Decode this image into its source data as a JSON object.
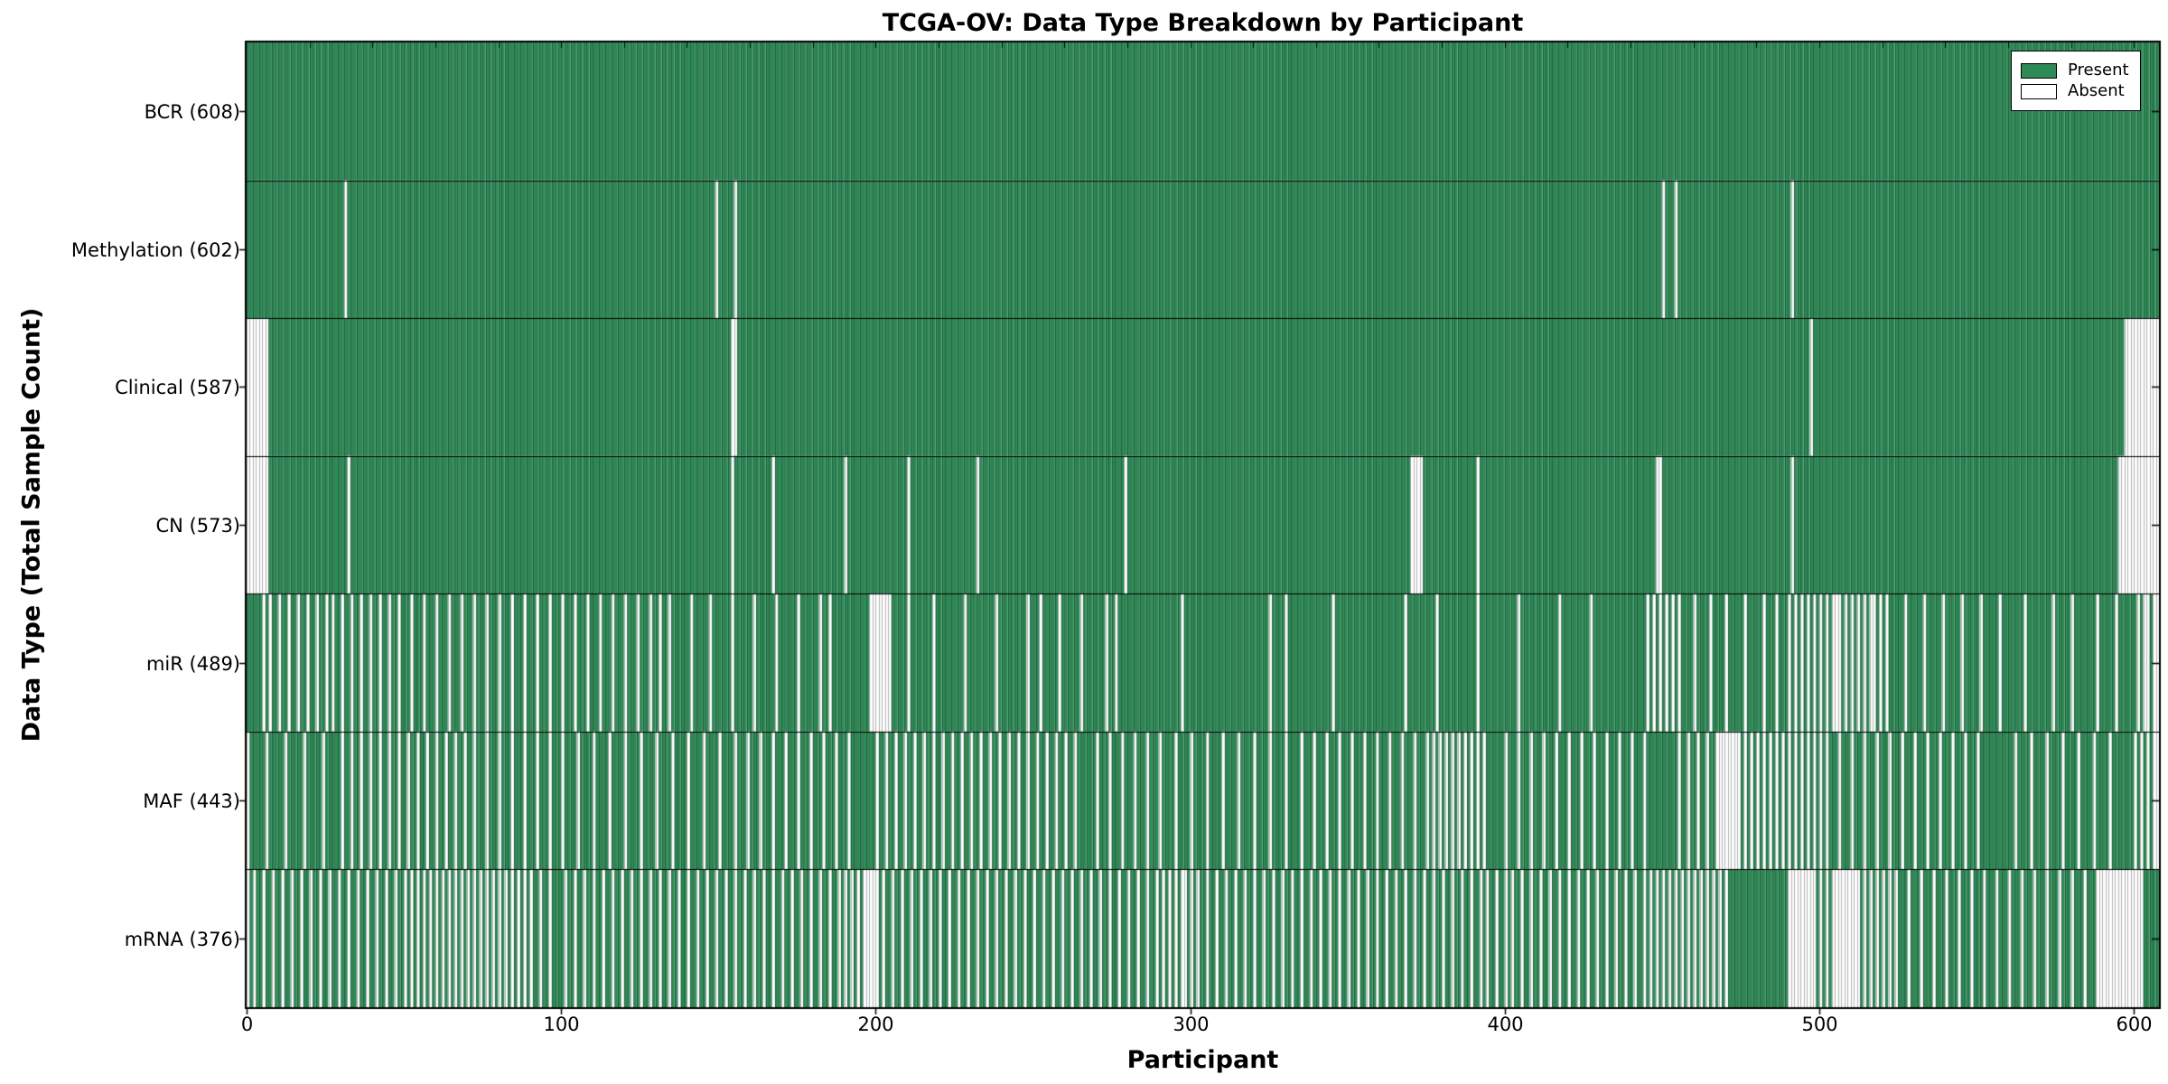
{
  "chart_data": {
    "type": "heatmap",
    "title": "TCGA-OV: Data Type Breakdown by Participant",
    "xlabel": "Participant",
    "ylabel": "Data Type (Total Sample Count)",
    "x_ticks": [
      "0",
      "100",
      "200",
      "300",
      "400",
      "500",
      "600"
    ],
    "x_tick_values": [
      0,
      100,
      200,
      300,
      400,
      500,
      600
    ],
    "xlim": [
      0,
      608
    ],
    "n_participants": 608,
    "grid": false,
    "legend_position": "upper right",
    "legend": {
      "entries": [
        {
          "label": "Present",
          "color": "#2e8b57"
        },
        {
          "label": "Absent",
          "color": "#ffffff"
        }
      ]
    },
    "colors": {
      "present": "#2e8b57",
      "absent": "#ffffff",
      "bar_edge": "rgba(0,0,0,0.30)",
      "frame": "#000000"
    },
    "rows": [
      {
        "name": "BCR",
        "count": 608,
        "tick_label": "BCR (608)",
        "absent": []
      },
      {
        "name": "Methylation",
        "count": 602,
        "tick_label": "Methylation (602)",
        "absent": [
          31,
          149,
          155,
          450,
          454,
          491
        ]
      },
      {
        "name": "Clinical",
        "count": 587,
        "tick_label": "Clinical (587)",
        "absent": [
          0,
          1,
          2,
          3,
          4,
          5,
          6,
          154,
          155,
          497,
          597,
          598,
          599,
          600,
          601,
          602,
          603,
          604,
          605,
          606,
          607
        ]
      },
      {
        "name": "CN",
        "count": 573,
        "tick_label": "CN (573)",
        "absent": [
          0,
          1,
          2,
          3,
          4,
          5,
          6,
          32,
          154,
          167,
          190,
          210,
          232,
          279,
          370,
          371,
          372,
          373,
          391,
          448,
          449,
          491,
          595,
          596,
          597,
          598,
          599,
          600,
          601,
          602,
          603,
          604,
          605,
          606,
          607
        ]
      },
      {
        "name": "miR",
        "count": 489,
        "tick_label": "miR (489)",
        "absent": [
          5,
          7,
          10,
          13,
          16,
          19,
          22,
          25,
          27,
          30,
          33,
          36,
          39,
          42,
          45,
          48,
          52,
          56,
          60,
          64,
          68,
          72,
          76,
          80,
          84,
          88,
          92,
          96,
          100,
          104,
          108,
          112,
          116,
          120,
          124,
          128,
          131,
          134,
          141,
          147,
          154,
          161,
          168,
          175,
          182,
          185,
          198,
          199,
          200,
          201,
          202,
          203,
          204,
          210,
          218,
          228,
          238,
          248,
          252,
          258,
          265,
          273,
          276,
          297,
          325,
          330,
          345,
          368,
          378,
          391,
          404,
          417,
          427,
          445,
          447,
          449,
          451,
          453,
          455,
          460,
          465,
          470,
          476,
          482,
          486,
          490,
          492,
          494,
          496,
          498,
          500,
          502,
          504,
          505,
          506,
          508,
          510,
          512,
          514,
          516,
          517,
          519,
          521,
          527,
          533,
          539,
          545,
          551,
          557,
          565,
          574,
          580,
          588,
          594,
          601,
          603,
          604,
          606,
          607
        ]
      },
      {
        "name": "MAF",
        "count": 443,
        "tick_label": "MAF (443)",
        "absent": [
          0,
          6,
          12,
          18,
          24,
          30,
          33,
          36,
          39,
          42,
          45,
          48,
          51,
          54,
          57,
          60,
          63,
          66,
          69,
          72,
          76,
          80,
          84,
          88,
          92,
          96,
          100,
          105,
          110,
          115,
          120,
          125,
          130,
          135,
          140,
          145,
          150,
          155,
          159,
          163,
          167,
          171,
          175,
          179,
          183,
          187,
          191,
          200,
          203,
          206,
          209,
          212,
          215,
          218,
          221,
          224,
          227,
          230,
          233,
          236,
          239,
          242,
          245,
          248,
          251,
          254,
          257,
          260,
          263,
          270,
          274,
          278,
          282,
          286,
          290,
          295,
          300,
          305,
          310,
          315,
          320,
          325,
          330,
          335,
          339,
          343,
          347,
          351,
          355,
          359,
          363,
          367,
          371,
          375,
          377,
          379,
          381,
          383,
          385,
          387,
          389,
          391,
          393,
          400,
          404,
          408,
          412,
          416,
          420,
          424,
          428,
          432,
          436,
          440,
          444,
          455,
          458,
          461,
          464,
          467,
          468,
          469,
          470,
          471,
          472,
          473,
          474,
          476,
          478,
          480,
          482,
          484,
          486,
          488,
          490,
          492,
          494,
          496,
          498,
          500,
          502,
          506,
          510,
          514,
          518,
          522,
          526,
          530,
          534,
          538,
          542,
          546,
          550,
          562,
          567,
          572,
          577,
          582,
          587,
          592,
          600,
          602,
          604,
          606,
          607
        ]
      },
      {
        "name": "mRNA",
        "count": 376,
        "tick_label": "mRNA (376)",
        "absent": [
          0,
          2,
          5,
          8,
          11,
          14,
          17,
          20,
          23,
          26,
          29,
          32,
          35,
          38,
          41,
          44,
          47,
          50,
          52,
          54,
          56,
          58,
          60,
          62,
          64,
          66,
          68,
          70,
          72,
          74,
          76,
          78,
          80,
          82,
          84,
          86,
          88,
          90,
          93,
          96,
          101,
          104,
          107,
          110,
          113,
          116,
          119,
          122,
          125,
          128,
          131,
          134,
          137,
          140,
          143,
          146,
          149,
          152,
          155,
          158,
          161,
          164,
          167,
          170,
          173,
          176,
          179,
          182,
          185,
          188,
          190,
          192,
          194,
          196,
          197,
          198,
          199,
          200,
          202,
          205,
          208,
          211,
          214,
          217,
          220,
          223,
          226,
          229,
          232,
          235,
          238,
          241,
          244,
          247,
          250,
          253,
          256,
          259,
          262,
          265,
          268,
          271,
          274,
          277,
          280,
          283,
          286,
          289,
          291,
          293,
          295,
          297,
          298,
          300,
          302,
          305,
          308,
          311,
          314,
          317,
          320,
          323,
          326,
          329,
          332,
          335,
          338,
          341,
          344,
          347,
          350,
          353,
          356,
          359,
          362,
          365,
          368,
          371,
          374,
          377,
          380,
          383,
          386,
          389,
          392,
          394,
          397,
          400,
          402,
          405,
          408,
          411,
          414,
          417,
          420,
          423,
          426,
          429,
          432,
          435,
          438,
          441,
          444,
          446,
          448,
          450,
          452,
          454,
          456,
          458,
          460,
          462,
          464,
          466,
          468,
          470,
          490,
          491,
          492,
          493,
          494,
          495,
          496,
          497,
          498,
          500,
          502,
          504,
          505,
          506,
          507,
          508,
          509,
          510,
          511,
          512,
          514,
          516,
          518,
          520,
          522,
          524,
          528,
          532,
          536,
          540,
          544,
          548,
          552,
          556,
          560,
          564,
          568,
          572,
          576,
          580,
          584,
          588,
          589,
          590,
          591,
          592,
          593,
          594,
          595,
          596,
          597,
          598,
          599,
          600,
          601,
          602
        ]
      }
    ]
  }
}
